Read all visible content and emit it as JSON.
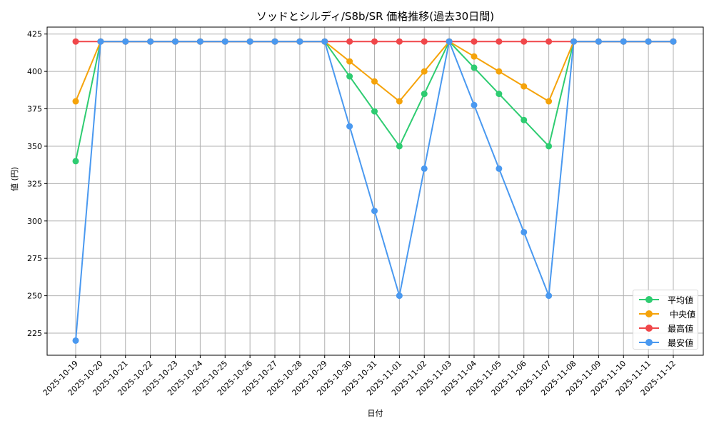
{
  "chart_data": {
    "type": "line",
    "title": "ソッドとシルディ/S8b/SR 価格推移(過去30日間)",
    "xlabel": "日付",
    "ylabel": "値 (円)",
    "ylim": [
      210,
      430
    ],
    "yticks": [
      225,
      250,
      275,
      300,
      325,
      350,
      375,
      400,
      425
    ],
    "grid": true,
    "legend_position": "lower right",
    "x": [
      "2025-10-19",
      "2025-10-20",
      "2025-10-21",
      "2025-10-22",
      "2025-10-23",
      "2025-10-24",
      "2025-10-25",
      "2025-10-26",
      "2025-10-27",
      "2025-10-28",
      "2025-10-29",
      "2025-10-30",
      "2025-10-31",
      "2025-11-01",
      "2025-11-02",
      "2025-11-03",
      "2025-11-04",
      "2025-11-05",
      "2025-11-06",
      "2025-11-07",
      "2025-11-08",
      "2025-11-09",
      "2025-11-10",
      "2025-11-11",
      "2025-11-12"
    ],
    "series": [
      {
        "name": "平均値",
        "color": "#2ecc71",
        "values": [
          340,
          420,
          420,
          420,
          420,
          420,
          420,
          420,
          420,
          420,
          420,
          396.7,
          373.3,
          350,
          385,
          420,
          402.5,
          385,
          367.5,
          350,
          420,
          420,
          420,
          420,
          420
        ]
      },
      {
        "name": "中央値",
        "color": "#f5a30a",
        "values": [
          380,
          420,
          420,
          420,
          420,
          420,
          420,
          420,
          420,
          420,
          420,
          406.7,
          393.3,
          380,
          400,
          420,
          410,
          400,
          390,
          380,
          420,
          420,
          420,
          420,
          420
        ]
      },
      {
        "name": "最高値",
        "color": "#f0474a",
        "values": [
          420,
          420,
          420,
          420,
          420,
          420,
          420,
          420,
          420,
          420,
          420,
          420,
          420,
          420,
          420,
          420,
          420,
          420,
          420,
          420,
          420,
          420,
          420,
          420,
          420
        ]
      },
      {
        "name": "最安値",
        "color": "#4a99f0",
        "values": [
          220,
          420,
          420,
          420,
          420,
          420,
          420,
          420,
          420,
          420,
          420,
          363.3,
          306.7,
          250,
          335,
          420,
          377.5,
          335,
          292.5,
          250,
          420,
          420,
          420,
          420,
          420
        ]
      }
    ]
  },
  "legend": {
    "items": [
      {
        "label": "平均値",
        "color": "#2ecc71"
      },
      {
        "label": "中央値",
        "color": "#f5a30a"
      },
      {
        "label": "最高値",
        "color": "#f0474a"
      },
      {
        "label": "最安値",
        "color": "#4a99f0"
      }
    ]
  }
}
